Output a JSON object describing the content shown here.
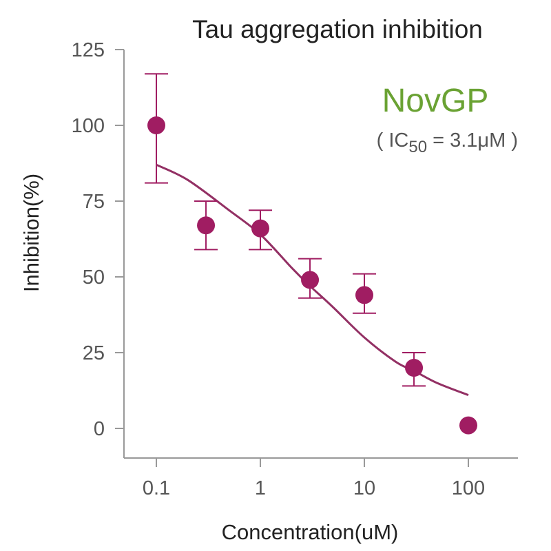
{
  "chart_data": {
    "type": "scatter",
    "title": "Tau aggregation inhibition",
    "xlabel": "Concentration(uM)",
    "ylabel": "Inhibition(%)",
    "x_scale": "log",
    "xlim": [
      0.07,
      250
    ],
    "ylim": [
      -10,
      125
    ],
    "x_ticks": [
      0.1,
      1,
      10,
      100
    ],
    "x_tick_labels": [
      "0.1",
      "1",
      "10",
      "100"
    ],
    "y_ticks": [
      0,
      25,
      50,
      75,
      100,
      125
    ],
    "y_tick_labels": [
      "0",
      "25",
      "50",
      "75",
      "100",
      "125"
    ],
    "grid": false,
    "series": [
      {
        "x": [
          0.1,
          0.3,
          1,
          3,
          10,
          30,
          100
        ],
        "y": [
          100,
          67,
          66,
          49,
          44,
          20,
          1
        ],
        "err_low": [
          81,
          59,
          59,
          43,
          38,
          14,
          null
        ],
        "err_high": [
          117,
          75,
          72,
          56,
          51,
          25,
          null
        ],
        "color": "#a01d62"
      }
    ],
    "fit_curve": {
      "color": "#933064",
      "x": [
        0.1,
        0.2,
        0.5,
        1,
        2,
        3,
        5,
        10,
        20,
        30,
        50,
        100
      ],
      "y": [
        87,
        82,
        72,
        64,
        53,
        47,
        40,
        30,
        22,
        19,
        15,
        11
      ]
    },
    "annotation": {
      "name": "NovGP",
      "name_color": "#6aa233",
      "ic_open": "( IC",
      "ic_sub": "50",
      "ic_close": " = 3.1μM )"
    }
  }
}
